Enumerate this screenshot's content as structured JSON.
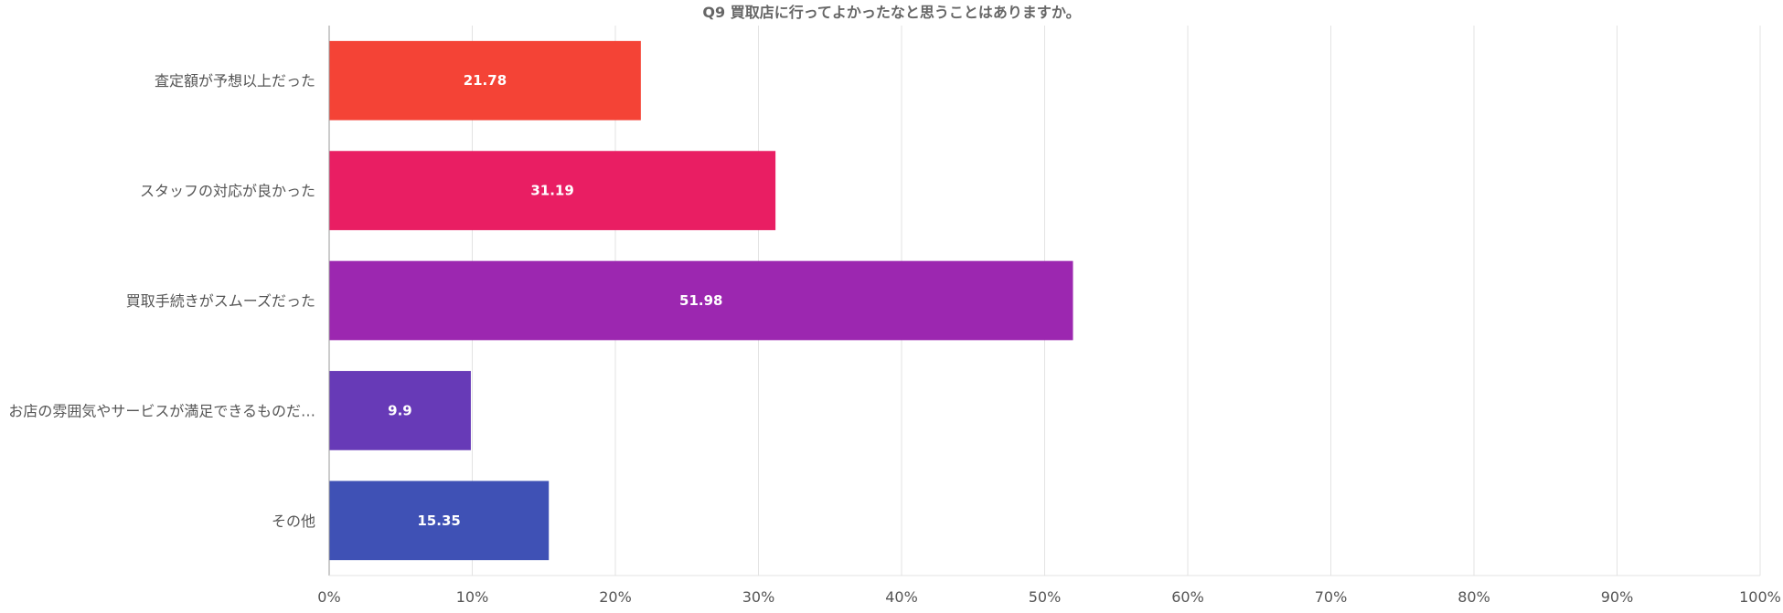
{
  "chart_data": {
    "type": "bar",
    "orientation": "horizontal",
    "title": "Q9 買取店に行ってよかったなと思うことはありますか。",
    "categories": [
      "査定額が予想以上だった",
      "スタッフの対応が良かった",
      "買取手続きがスムーズだった",
      "お店の雰囲気やサービスが満足できるものだ…",
      "その他"
    ],
    "values": [
      21.78,
      31.19,
      51.98,
      9.9,
      15.35
    ],
    "data_labels": [
      "21.78",
      "31.19",
      "51.98",
      "9.9",
      "15.35"
    ],
    "colors": [
      "#f44336",
      "#e91e63",
      "#9c27b0",
      "#673ab7",
      "#3f51b5"
    ],
    "xlim": [
      0,
      100
    ],
    "x_ticks": [
      0,
      10,
      20,
      30,
      40,
      50,
      60,
      70,
      80,
      90,
      100
    ],
    "x_tick_labels": [
      "0%",
      "10%",
      "20%",
      "30%",
      "40%",
      "50%",
      "60%",
      "70%",
      "80%",
      "90%",
      "100%"
    ],
    "xlabel": "",
    "ylabel": "",
    "grid": true,
    "legend": "none"
  }
}
